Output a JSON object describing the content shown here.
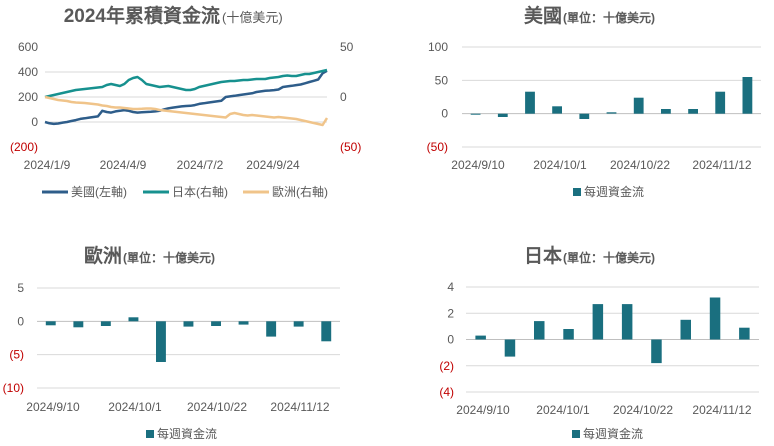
{
  "chart_data": [
    {
      "type": "line",
      "title_main": "2024年累積資金流",
      "title_unit": "(十億美元)",
      "x_tick_labels": [
        "2024/1/9",
        "2024/4/9",
        "2024/7/2",
        "2024/9/24"
      ],
      "left_axis": {
        "ylim": [
          -200,
          600
        ],
        "tick_labels": [
          "600",
          "400",
          "200",
          "0",
          "(200)"
        ]
      },
      "right_axis": {
        "ylim": [
          -50,
          50
        ],
        "tick_labels": [
          "50",
          "0",
          "(50)"
        ]
      },
      "series": [
        {
          "name": "美國(左軸)",
          "axis": "left",
          "color": "#2e5d8a",
          "values": [
            0,
            -10,
            -15,
            -12,
            -5,
            0,
            8,
            15,
            25,
            30,
            35,
            40,
            45,
            90,
            80,
            75,
            85,
            90,
            95,
            90,
            80,
            75,
            78,
            80,
            82,
            85,
            90,
            100,
            110,
            115,
            120,
            125,
            128,
            130,
            135,
            145,
            150,
            155,
            160,
            165,
            170,
            200,
            205,
            210,
            215,
            220,
            225,
            230,
            240,
            245,
            250,
            252,
            255,
            260,
            280,
            285,
            290,
            295,
            300,
            310,
            320,
            330,
            340,
            390,
            410
          ]
        },
        {
          "name": "日本(右軸)",
          "axis": "right",
          "color": "#17918f",
          "values": [
            0,
            1,
            2,
            3,
            4,
            5,
            6,
            7,
            7.5,
            8,
            8.5,
            9,
            9.5,
            10,
            12,
            13,
            12,
            11,
            13,
            17,
            19,
            20,
            17,
            13,
            12,
            11,
            10,
            10.5,
            11,
            10,
            9,
            8,
            7,
            7,
            8,
            10,
            11,
            12,
            13,
            14,
            15,
            15.5,
            16,
            16,
            16.5,
            17,
            17,
            17.5,
            18,
            18,
            18,
            19,
            19.5,
            20,
            21,
            21.5,
            21,
            21,
            22,
            23,
            23,
            24,
            25,
            26,
            27
          ]
        },
        {
          "name": "歐洲(右軸)",
          "axis": "right",
          "color": "#f0c48a",
          "values": [
            0,
            -1,
            -2,
            -3,
            -3.5,
            -4,
            -5,
            -5.5,
            -5.8,
            -6,
            -6.5,
            -7,
            -7.5,
            -8.5,
            -9,
            -10,
            -10.5,
            -10.5,
            -11,
            -11.5,
            -12,
            -12,
            -11.8,
            -11.5,
            -11.5,
            -12,
            -13,
            -13.5,
            -14,
            -14.5,
            -15,
            -15.5,
            -16,
            -16.5,
            -17,
            -17.5,
            -18,
            -18.5,
            -19,
            -19.5,
            -20,
            -20.5,
            -17,
            -16,
            -17,
            -18,
            -18.5,
            -18,
            -18.5,
            -19,
            -19.5,
            -20,
            -20.5,
            -20,
            -20.5,
            -21,
            -21.5,
            -22,
            -23,
            -24,
            -25,
            -26,
            -27,
            -28,
            -21
          ]
        }
      ],
      "legend_position": "bottom"
    },
    {
      "type": "bar",
      "title_main": "美國",
      "title_unit": "(單位：十億美元)",
      "x_tick_labels": [
        "2024/9/10",
        "2024/10/1",
        "2024/10/22",
        "2024/11/12"
      ],
      "ylim": [
        -50,
        100
      ],
      "tick_labels": [
        "100",
        "50",
        "0",
        "(50)"
      ],
      "series": [
        {
          "name": "每週資金流",
          "color": "#1a6f7f",
          "values": [
            -1,
            -5,
            33,
            11,
            -8,
            2,
            24,
            7,
            7,
            33,
            55
          ]
        }
      ],
      "legend_position": "bottom"
    },
    {
      "type": "bar",
      "title_main": "歐洲",
      "title_unit": "(單位：十億美元)",
      "x_tick_labels": [
        "2024/9/10",
        "2024/10/1",
        "2024/10/22",
        "2024/11/12"
      ],
      "ylim": [
        -10,
        5
      ],
      "tick_labels": [
        "5",
        "0",
        "(5)",
        "(10)"
      ],
      "series": [
        {
          "name": "每週資金流",
          "color": "#1a6f7f",
          "values": [
            -0.6,
            -0.9,
            -0.7,
            0.6,
            -6.1,
            -0.8,
            -0.7,
            -0.5,
            -2.3,
            -0.8,
            -3.0
          ]
        }
      ],
      "legend_position": "bottom"
    },
    {
      "type": "bar",
      "title_main": "日本",
      "title_unit": "(單位：十億美元)",
      "x_tick_labels": [
        "2024/9/10",
        "2024/10/1",
        "2024/10/22",
        "2024/11/12"
      ],
      "ylim": [
        -4,
        4
      ],
      "tick_labels": [
        "4",
        "2",
        "0",
        "(2)",
        "(4)"
      ],
      "series": [
        {
          "name": "每週資金流",
          "color": "#1a6f7f",
          "values": [
            0.3,
            -1.3,
            1.4,
            0.8,
            2.7,
            2.7,
            -1.8,
            1.5,
            3.2,
            0.9
          ]
        }
      ],
      "legend_position": "bottom"
    }
  ]
}
